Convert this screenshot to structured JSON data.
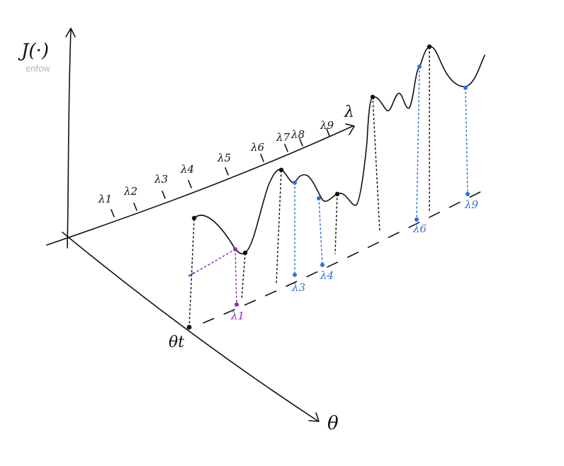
{
  "y_axis_label": "J(·)",
  "watermark": "enfow",
  "lambda_axis_label": "λ",
  "theta_axis_label": "θ",
  "theta_t_label": "θt",
  "lambda_ticks": [
    "λ1",
    "λ2",
    "λ3",
    "λ4",
    "λ5",
    "λ6",
    "λ7",
    "λ8",
    "λ9"
  ],
  "selected_labels": {
    "lambda1": "λ1",
    "lambda3": "λ3",
    "lambda4": "λ4",
    "lambda6": "λ6",
    "lambda9": "λ9"
  },
  "colors": {
    "ink": "#111111",
    "blue": "#2f6fe0",
    "purple": "#8a2fb5",
    "watermark": "#b5b5b5"
  }
}
